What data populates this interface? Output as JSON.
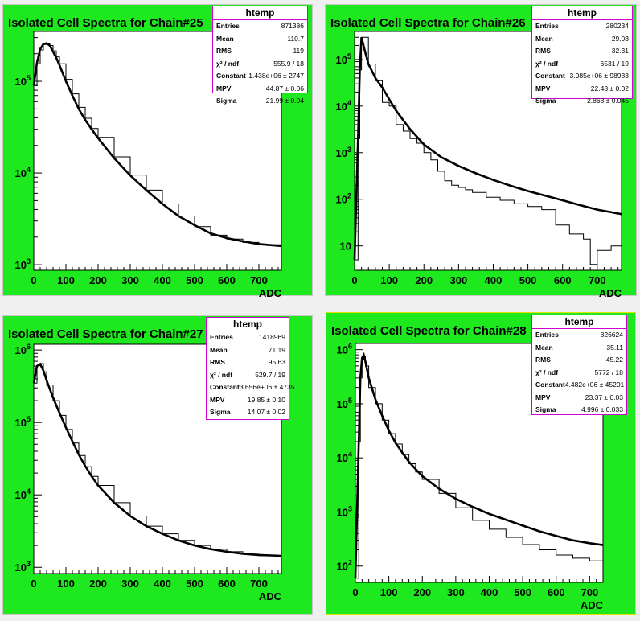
{
  "colors": {
    "pad_fill": "#1ee81e",
    "frame_fill": "#ffffff",
    "stats_border": "#d000d0",
    "selected_border": "#e8e000"
  },
  "chart_data": [
    {
      "type": "line",
      "title": "Isolated Cell Spectra for Chain#25",
      "xlabel": "ADC",
      "ylabel": "",
      "xlim": [
        0,
        770
      ],
      "ylim": [
        870,
        350000
      ],
      "yscale": "log",
      "xticks": [
        "0",
        "100",
        "200",
        "300",
        "400",
        "500",
        "600",
        "700"
      ],
      "yticks": [
        "10^3",
        "10^4",
        "10^5"
      ],
      "series": [
        {
          "values": [
            [
              0,
              90000
            ],
            [
              10,
              160000
            ],
            [
              20,
              225000
            ],
            [
              30,
              255000
            ],
            [
              40,
              260000
            ],
            [
              50,
              245000
            ],
            [
              60,
              210000
            ],
            [
              70,
              180000
            ],
            [
              80,
              150000
            ],
            [
              100,
              100000
            ],
            [
              120,
              70000
            ],
            [
              140,
              50000
            ],
            [
              160,
              38000
            ],
            [
              180,
              30000
            ],
            [
              200,
              24000
            ],
            [
              250,
              14500
            ],
            [
              300,
              9400
            ],
            [
              350,
              6500
            ],
            [
              400,
              4600
            ],
            [
              450,
              3400
            ],
            [
              500,
              2700
            ],
            [
              550,
              2200
            ],
            [
              600,
              1950
            ],
            [
              650,
              1800
            ],
            [
              700,
              1680
            ],
            [
              770,
              1600
            ]
          ]
        },
        {
          "values": [
            [
              0,
              90000
            ],
            [
              10,
              155000
            ],
            [
              20,
              220000
            ],
            [
              30,
              252000
            ],
            [
              40,
              258000
            ],
            [
              50,
              246000
            ],
            [
              60,
              215000
            ],
            [
              70,
              185000
            ],
            [
              80,
              155000
            ],
            [
              100,
              105000
            ],
            [
              120,
              73000
            ],
            [
              140,
              52000
            ],
            [
              160,
              39500
            ],
            [
              180,
              30500
            ],
            [
              200,
              24500
            ],
            [
              250,
              15000
            ],
            [
              300,
              9500
            ],
            [
              350,
              6500
            ],
            [
              400,
              4600
            ],
            [
              450,
              3400
            ],
            [
              500,
              2600
            ],
            [
              550,
              2100
            ],
            [
              600,
              1900
            ],
            [
              650,
              1750
            ],
            [
              700,
              1650
            ],
            [
              770,
              1600
            ]
          ]
        }
      ],
      "stats": {
        "title": "htemp",
        "rows": [
          [
            "Entries",
            "871386"
          ],
          [
            "Mean",
            "110.7"
          ],
          [
            "RMS",
            "119"
          ],
          [
            "χ² / ndf",
            "555.9 / 18"
          ],
          [
            "Constant",
            "1.438e+06 ± 2747"
          ],
          [
            "MPV",
            "44.87 ± 0.06"
          ],
          [
            "Sigma",
            "21.99 ± 0.04"
          ]
        ]
      }
    },
    {
      "type": "line",
      "title": "Isolated Cell Spectra for Chain#26",
      "xlabel": "ADC",
      "ylabel": "",
      "xlim": [
        0,
        770
      ],
      "ylim": [
        3,
        400000
      ],
      "yscale": "log",
      "xticks": [
        "0",
        "100",
        "200",
        "300",
        "400",
        "500",
        "600",
        "700"
      ],
      "yticks": [
        "10",
        "10^2",
        "10^3",
        "10^4",
        "10^5"
      ],
      "series": [
        {
          "values": [
            [
              0,
              5
            ],
            [
              10,
              2000
            ],
            [
              15,
              60000
            ],
            [
              20,
              300000
            ],
            [
              30,
              150000
            ],
            [
              40,
              80000
            ],
            [
              60,
              40000
            ],
            [
              80,
              25000
            ],
            [
              100,
              14000
            ],
            [
              120,
              8000
            ],
            [
              140,
              5000
            ],
            [
              160,
              3200
            ],
            [
              180,
              2200
            ],
            [
              200,
              1500
            ],
            [
              250,
              800
            ],
            [
              300,
              520
            ],
            [
              350,
              360
            ],
            [
              400,
              260
            ],
            [
              450,
              195
            ],
            [
              500,
              150
            ],
            [
              550,
              120
            ],
            [
              600,
              95
            ],
            [
              650,
              75
            ],
            [
              700,
              60
            ],
            [
              770,
              48
            ]
          ]
        },
        {
          "values": [
            [
              0,
              5
            ],
            [
              10,
              2000
            ],
            [
              15,
              60000
            ],
            [
              20,
              300000
            ],
            [
              40,
              80000
            ],
            [
              60,
              35000
            ],
            [
              80,
              12000
            ],
            [
              100,
              10000
            ],
            [
              120,
              4000
            ],
            [
              140,
              2900
            ],
            [
              160,
              2000
            ],
            [
              180,
              1600
            ],
            [
              200,
              1000
            ],
            [
              220,
              700
            ],
            [
              240,
              400
            ],
            [
              260,
              250
            ],
            [
              280,
              200
            ],
            [
              300,
              180
            ],
            [
              320,
              160
            ],
            [
              340,
              140
            ],
            [
              380,
              110
            ],
            [
              420,
              95
            ],
            [
              460,
              80
            ],
            [
              500,
              70
            ],
            [
              540,
              60
            ],
            [
              580,
              28
            ],
            [
              620,
              18
            ],
            [
              660,
              14
            ],
            [
              680,
              4
            ],
            [
              700,
              8
            ],
            [
              740,
              10
            ],
            [
              770,
              13
            ]
          ]
        }
      ],
      "stats": {
        "title": "htemp",
        "rows": [
          [
            "Entries",
            "280234"
          ],
          [
            "Mean",
            "29.03"
          ],
          [
            "RMS",
            "32.31"
          ],
          [
            "χ² / ndf",
            "6531 / 19"
          ],
          [
            "Constant",
            "3.085e+06 ± 98933"
          ],
          [
            "MPV",
            "22.48 ± 0.02"
          ],
          [
            "Sigma",
            "2.868 ± 0.045"
          ]
        ]
      }
    },
    {
      "type": "line",
      "title": "Isolated Cell Spectra for Chain#27",
      "xlabel": "ADC",
      "ylabel": "",
      "xlim": [
        0,
        770
      ],
      "ylim": [
        820,
        1200000
      ],
      "yscale": "log",
      "xticks": [
        "0",
        "100",
        "200",
        "300",
        "400",
        "500",
        "600",
        "700"
      ],
      "yticks": [
        "10^3",
        "10^4",
        "10^5",
        "10^6"
      ],
      "series": [
        {
          "values": [
            [
              0,
              350000
            ],
            [
              10,
              600000
            ],
            [
              20,
              640000
            ],
            [
              30,
              520000
            ],
            [
              40,
              380000
            ],
            [
              60,
              220000
            ],
            [
              80,
              135000
            ],
            [
              100,
              85000
            ],
            [
              120,
              55000
            ],
            [
              140,
              36000
            ],
            [
              160,
              25000
            ],
            [
              180,
              18000
            ],
            [
              200,
              13500
            ],
            [
              250,
              7800
            ],
            [
              300,
              5100
            ],
            [
              350,
              3700
            ],
            [
              400,
              2900
            ],
            [
              450,
              2350
            ],
            [
              500,
              2000
            ],
            [
              550,
              1780
            ],
            [
              600,
              1640
            ],
            [
              650,
              1540
            ],
            [
              700,
              1480
            ],
            [
              770,
              1440
            ]
          ]
        },
        {
          "values": [
            [
              0,
              350000
            ],
            [
              10,
              610000
            ],
            [
              20,
              650000
            ],
            [
              30,
              500000
            ],
            [
              40,
              330000
            ],
            [
              60,
              200000
            ],
            [
              80,
              125000
            ],
            [
              100,
              80000
            ],
            [
              120,
              52000
            ],
            [
              140,
              35000
            ],
            [
              160,
              24500
            ],
            [
              180,
              18000
            ],
            [
              200,
              13500
            ],
            [
              250,
              7800
            ],
            [
              300,
              5100
            ],
            [
              350,
              3700
            ],
            [
              400,
              2900
            ],
            [
              450,
              2350
            ],
            [
              500,
              2000
            ],
            [
              550,
              1780
            ],
            [
              600,
              1640
            ],
            [
              650,
              1520
            ],
            [
              700,
              1450
            ],
            [
              770,
              1400
            ]
          ]
        }
      ],
      "stats": {
        "title": "htemp",
        "rows": [
          [
            "Entries",
            "1418969"
          ],
          [
            "Mean",
            "71.19"
          ],
          [
            "RMS",
            "95.63"
          ],
          [
            "χ² / ndf",
            "529.7 / 19"
          ],
          [
            "Constant",
            "3.656e+06 ± 4735"
          ],
          [
            "MPV",
            "19.85 ± 0.10"
          ],
          [
            "Sigma",
            "14.07 ± 0.02"
          ]
        ]
      }
    },
    {
      "type": "line",
      "title": "Isolated Cell Spectra for Chain#28",
      "xlabel": "ADC",
      "ylabel": "",
      "xlim": [
        0,
        740
      ],
      "ylim": [
        50,
        1300000
      ],
      "yscale": "log",
      "xticks": [
        "0",
        "100",
        "200",
        "300",
        "400",
        "500",
        "600",
        "700"
      ],
      "yticks": [
        "10^2",
        "10^3",
        "10^4",
        "10^5",
        "10^6"
      ],
      "series": [
        {
          "values": [
            [
              0,
              60
            ],
            [
              10,
              20000
            ],
            [
              15,
              300000
            ],
            [
              20,
              700000
            ],
            [
              25,
              800000
            ],
            [
              30,
              600000
            ],
            [
              40,
              300000
            ],
            [
              60,
              120000
            ],
            [
              80,
              60000
            ],
            [
              100,
              32000
            ],
            [
              120,
              19000
            ],
            [
              140,
              12500
            ],
            [
              160,
              8500
            ],
            [
              180,
              6200
            ],
            [
              200,
              4600
            ],
            [
              250,
              2700
            ],
            [
              300,
              1750
            ],
            [
              350,
              1250
            ],
            [
              400,
              920
            ],
            [
              450,
              720
            ],
            [
              500,
              560
            ],
            [
              550,
              440
            ],
            [
              600,
              360
            ],
            [
              650,
              300
            ],
            [
              700,
              265
            ],
            [
              740,
              245
            ]
          ]
        },
        {
          "values": [
            [
              0,
              60
            ],
            [
              10,
              20000
            ],
            [
              15,
              300000
            ],
            [
              20,
              650000
            ],
            [
              25,
              750000
            ],
            [
              30,
              500000
            ],
            [
              40,
              200000
            ],
            [
              60,
              100000
            ],
            [
              80,
              50000
            ],
            [
              100,
              28000
            ],
            [
              120,
              18000
            ],
            [
              140,
              11500
            ],
            [
              160,
              7800
            ],
            [
              180,
              5500
            ],
            [
              200,
              4000
            ],
            [
              250,
              2200
            ],
            [
              300,
              1200
            ],
            [
              350,
              700
            ],
            [
              400,
              480
            ],
            [
              450,
              340
            ],
            [
              500,
              250
            ],
            [
              550,
              200
            ],
            [
              600,
              160
            ],
            [
              650,
              140
            ],
            [
              700,
              125
            ],
            [
              740,
              115
            ]
          ]
        }
      ],
      "stats": {
        "title": "htemp",
        "rows": [
          [
            "Entries",
            "826624"
          ],
          [
            "Mean",
            "35.11"
          ],
          [
            "RMS",
            "45.22"
          ],
          [
            "χ² / ndf",
            "5772 / 18"
          ],
          [
            "Constant",
            "4.482e+06 ± 45201"
          ],
          [
            "MPV",
            "23.37 ± 0.03"
          ],
          [
            "Sigma",
            "4.996 ± 0.033"
          ]
        ]
      }
    }
  ]
}
